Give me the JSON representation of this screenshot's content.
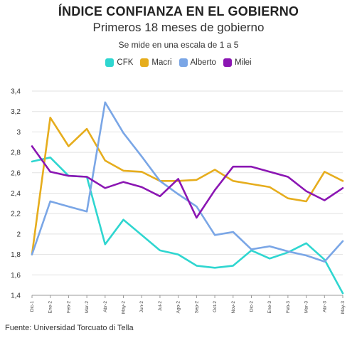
{
  "header": {
    "title": "ÍNDICE CONFIANZA EN EL GOBIERNO",
    "subtitle": "Primeros 18 meses de gobierno",
    "note": "Se mide en una escala de 1 a 5"
  },
  "footer": {
    "source": "Fuente: Universidad Torcuato di Tella"
  },
  "chart_data": {
    "type": "line",
    "title": "ÍNDICE CONFIANZA EN EL GOBIERNO",
    "subtitle": "Primeros 18 meses de gobierno",
    "xlabel": "",
    "ylabel": "",
    "categories": [
      "Dic-1",
      "Ene-2",
      "Feb-2",
      "Mar-2",
      "Abr-2",
      "May-2",
      "Jun-2",
      "Jul-2",
      "Ago-2",
      "Sep-2",
      "Oct-2",
      "Nov-2",
      "Dic-2",
      "Ene-3",
      "Feb-3",
      "Mar-3",
      "Abr-3",
      "May-3"
    ],
    "ylim": [
      1.4,
      3.4
    ],
    "yticks": [
      "1,4",
      "1,6",
      "1,8",
      "2",
      "2,2",
      "2,4",
      "2,6",
      "2,8",
      "3",
      "3,2",
      "3,4"
    ],
    "grid": true,
    "legend_position": "top",
    "series": [
      {
        "name": "CFK",
        "color": "#2fd6d0",
        "values": [
          2.71,
          2.75,
          2.57,
          2.56,
          1.9,
          2.14,
          1.99,
          1.84,
          1.8,
          1.69,
          1.67,
          1.69,
          1.84,
          1.76,
          1.82,
          1.91,
          1.75,
          1.42
        ]
      },
      {
        "name": "Macri",
        "color": "#e6ad1d",
        "values": [
          1.8,
          3.14,
          2.86,
          3.03,
          2.72,
          2.62,
          2.61,
          2.52,
          2.52,
          2.53,
          2.63,
          2.52,
          2.49,
          2.46,
          2.35,
          2.32,
          2.61,
          2.52
        ]
      },
      {
        "name": "Alberto",
        "color": "#7aa6e6",
        "values": [
          1.8,
          2.32,
          2.27,
          2.22,
          3.29,
          2.99,
          2.76,
          2.52,
          2.39,
          2.27,
          1.99,
          2.02,
          1.85,
          1.88,
          1.83,
          1.79,
          1.73,
          1.93
        ]
      },
      {
        "name": "Milei",
        "color": "#8b16b3",
        "values": [
          2.86,
          2.61,
          2.57,
          2.56,
          2.45,
          2.51,
          2.46,
          2.37,
          2.54,
          2.16,
          2.43,
          2.66,
          2.66,
          2.61,
          2.56,
          2.42,
          2.33,
          2.45
        ]
      }
    ]
  }
}
